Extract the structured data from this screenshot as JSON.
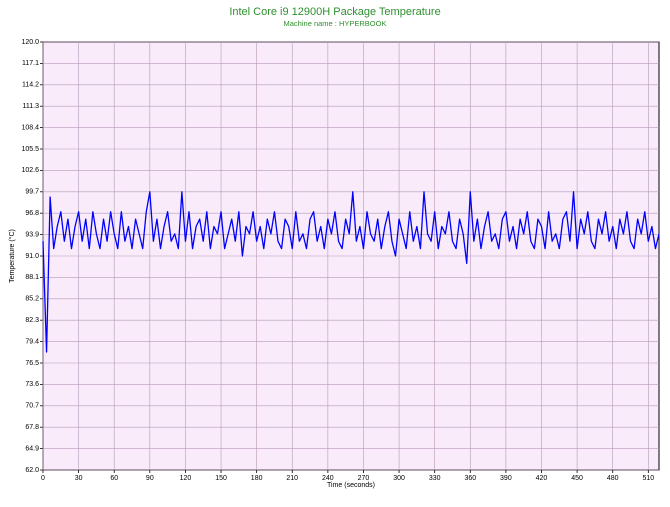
{
  "chart_data": {
    "type": "line",
    "title": "Intel Core i9 12900H Package Temperature",
    "subtitle": "Machine name : HYPERBOOK",
    "xlabel": "Time (seconds)",
    "ylabel": "Temperature (°C)",
    "color": "#0000ff",
    "grid": true,
    "xlim": [
      0,
      519
    ],
    "xticks": [
      0,
      30,
      60,
      90,
      120,
      150,
      180,
      210,
      240,
      270,
      300,
      330,
      360,
      390,
      420,
      450,
      480,
      510
    ],
    "ylim": [
      62,
      120
    ],
    "yticks": [
      {
        "value": 62,
        "label": "62.0"
      },
      64.9,
      67.8,
      70.7,
      73.6,
      76.5,
      79.4,
      82.3,
      85.2,
      88.1,
      {
        "value": 91,
        "label": "91.0"
      },
      93.9,
      96.8,
      99.7,
      102.6,
      105.5,
      108.4,
      111.3,
      114.2,
      117.1,
      {
        "value": 120,
        "label": "120.0"
      }
    ],
    "x": [
      0,
      3,
      6,
      9,
      12,
      15,
      18,
      21,
      24,
      27,
      30,
      33,
      36,
      39,
      42,
      45,
      48,
      51,
      54,
      57,
      60,
      63,
      66,
      69,
      72,
      75,
      78,
      81,
      84,
      87,
      90,
      93,
      96,
      99,
      102,
      105,
      108,
      111,
      114,
      117,
      120,
      123,
      126,
      129,
      132,
      135,
      138,
      141,
      144,
      147,
      150,
      153,
      156,
      159,
      162,
      165,
      168,
      171,
      174,
      177,
      180,
      183,
      186,
      189,
      192,
      195,
      198,
      201,
      204,
      207,
      210,
      213,
      216,
      219,
      222,
      225,
      228,
      231,
      234,
      237,
      240,
      243,
      246,
      249,
      252,
      255,
      258,
      261,
      264,
      267,
      270,
      273,
      276,
      279,
      282,
      285,
      288,
      291,
      294,
      297,
      300,
      303,
      306,
      309,
      312,
      315,
      318,
      321,
      324,
      327,
      330,
      333,
      336,
      339,
      342,
      345,
      348,
      351,
      354,
      357,
      360,
      363,
      366,
      369,
      372,
      375,
      378,
      381,
      384,
      387,
      390,
      393,
      396,
      399,
      402,
      405,
      408,
      411,
      414,
      417,
      420,
      423,
      426,
      429,
      432,
      435,
      438,
      441,
      444,
      447,
      450,
      453,
      456,
      459,
      462,
      465,
      468,
      471,
      474,
      477,
      480,
      483,
      486,
      489,
      492,
      495,
      498,
      501,
      504,
      507,
      510,
      513,
      516,
      519
    ],
    "values": [
      93,
      78,
      99,
      92,
      95,
      97,
      93,
      96,
      92,
      95,
      97,
      93,
      96,
      92,
      97,
      94,
      92,
      96,
      93,
      97,
      94,
      92,
      97,
      93,
      95,
      92,
      96,
      94,
      92,
      97,
      99.7,
      93,
      96,
      92,
      95,
      97,
      93,
      94,
      92,
      99.7,
      93,
      97,
      92,
      95,
      96,
      93,
      97,
      92,
      95,
      94,
      97,
      92,
      94,
      96,
      93,
      97,
      91,
      95,
      94,
      97,
      93,
      95,
      92,
      96,
      94,
      97,
      93,
      92,
      96,
      95,
      92,
      97,
      93,
      94,
      92,
      96,
      97,
      93,
      95,
      92,
      96,
      94,
      97,
      93,
      92,
      96,
      94,
      99.7,
      93,
      95,
      92,
      97,
      94,
      93,
      96,
      92,
      95,
      97,
      93,
      91,
      96,
      94,
      92,
      97,
      93,
      95,
      92,
      99.7,
      94,
      93,
      97,
      92,
      95,
      94,
      97,
      93,
      92,
      96,
      94,
      90,
      99.7,
      93,
      96,
      92,
      95,
      97,
      93,
      94,
      92,
      96,
      97,
      93,
      95,
      92,
      96,
      94,
      97,
      93,
      92,
      96,
      95,
      92,
      97,
      93,
      94,
      92,
      96,
      97,
      93,
      99.7,
      92,
      96,
      94,
      97,
      93,
      92,
      96,
      94,
      97,
      93,
      95,
      92,
      96,
      94,
      97,
      93,
      92,
      96,
      94,
      97,
      93,
      95,
      92,
      94
    ]
  }
}
